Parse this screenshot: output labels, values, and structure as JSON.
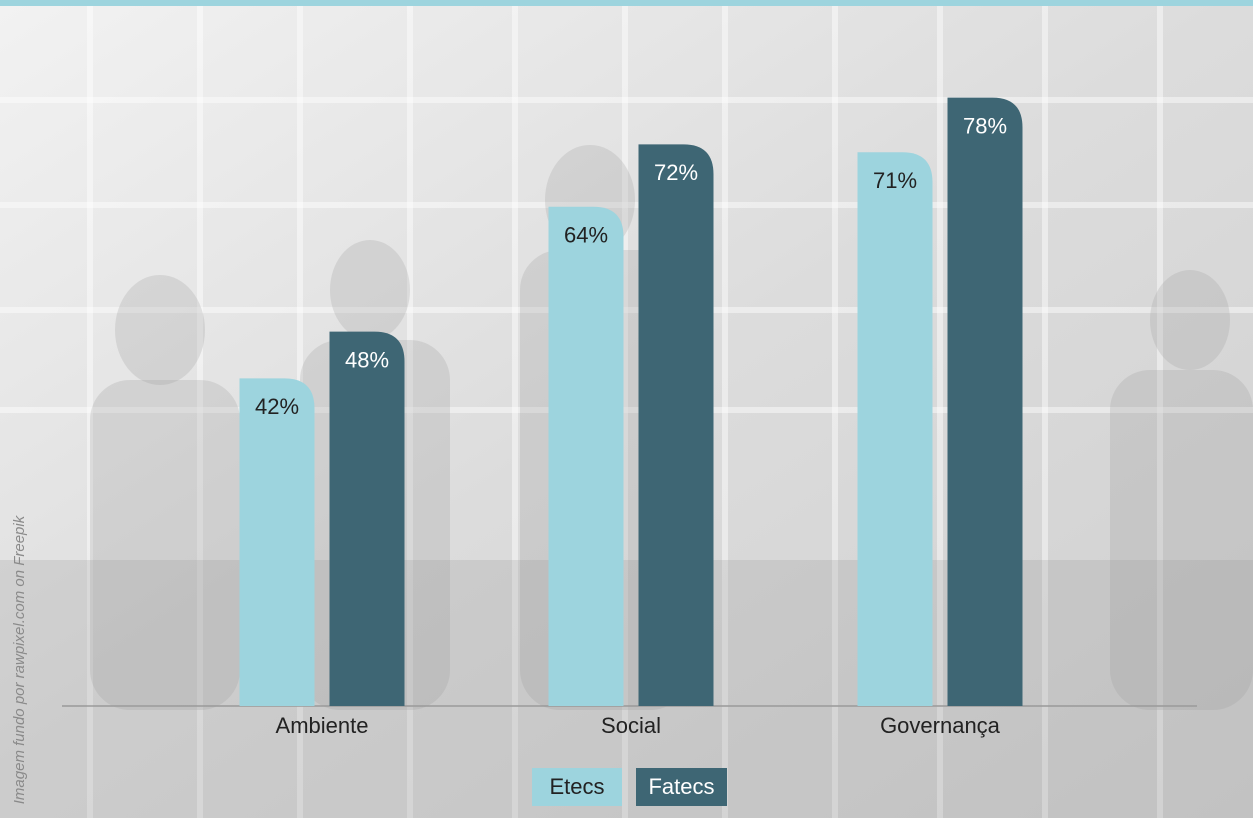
{
  "chart_data": {
    "type": "bar",
    "categories": [
      "Ambiente",
      "Social",
      "Governança"
    ],
    "series": [
      {
        "name": "Etecs",
        "color": "#9dd4de",
        "values": [
          42,
          64,
          71
        ],
        "value_labels": [
          "42%",
          "64%",
          "71%"
        ]
      },
      {
        "name": "Fatecs",
        "color": "#3e6674",
        "values": [
          48,
          72,
          78
        ],
        "value_labels": [
          "48%",
          "72%",
          "78%"
        ]
      }
    ],
    "credit": "Imagem fundo por rawpixel.com on Freepik"
  }
}
